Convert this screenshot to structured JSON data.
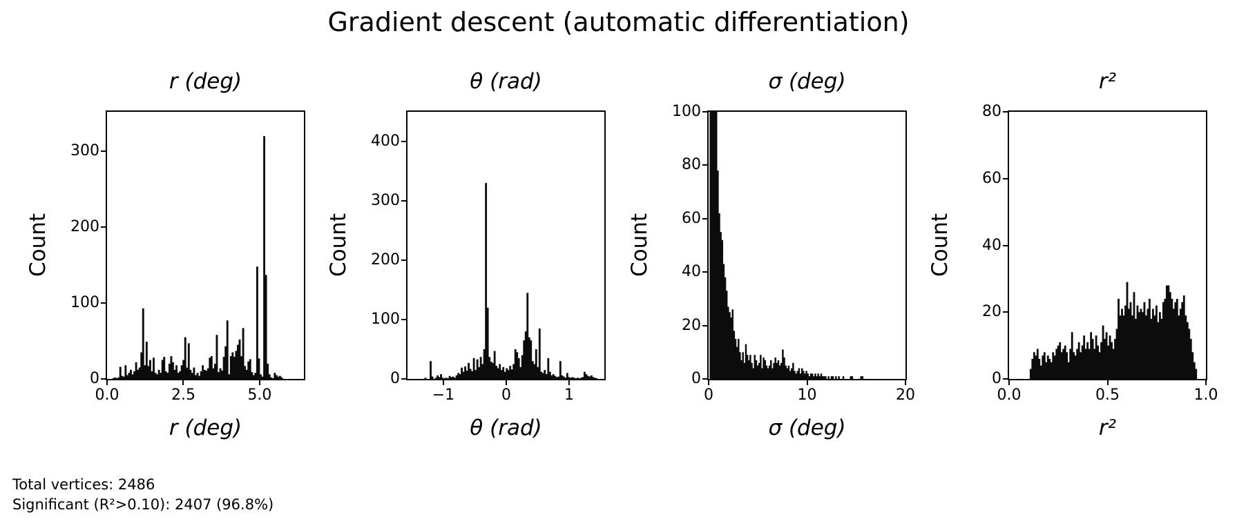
{
  "figure": {
    "title": "Gradient descent (automatic differentiation)"
  },
  "annotation": {
    "line1": "Total vertices: 2486",
    "line2": "Significant (R²>0.10): 2407 (96.8%)"
  },
  "colors": {
    "bar": "#0c0c0c",
    "spine": "#000000",
    "text": "#000000",
    "background": "#ffffff"
  },
  "chart_data": [
    {
      "type": "bar",
      "subtype": "histogram",
      "title": "r (deg)",
      "xlabel": "r (deg)",
      "ylabel": "Count",
      "xlim": [
        0,
        6.45
      ],
      "ylim": [
        0,
        352
      ],
      "grid": false,
      "legend": "none",
      "xticks": [
        {
          "v": 0,
          "label": "0.0"
        },
        {
          "v": 2.5,
          "label": "2.5"
        },
        {
          "v": 5.0,
          "label": "5.0"
        }
      ],
      "yticks": [
        {
          "v": 0,
          "label": "0"
        },
        {
          "v": 100,
          "label": "100"
        },
        {
          "v": 200,
          "label": "200"
        },
        {
          "v": 300,
          "label": "300"
        }
      ],
      "bin_start": 0.0,
      "bin_width": 0.0575,
      "counts": [
        0,
        0,
        0,
        1,
        2,
        1,
        2,
        16,
        4,
        3,
        18,
        5,
        8,
        12,
        6,
        10,
        22,
        12,
        15,
        35,
        93,
        18,
        49,
        17,
        25,
        10,
        28,
        8,
        6,
        12,
        8,
        25,
        29,
        10,
        8,
        20,
        30,
        22,
        12,
        18,
        8,
        10,
        18,
        25,
        55,
        15,
        47,
        12,
        8,
        15,
        5,
        8,
        4,
        10,
        18,
        12,
        11,
        14,
        28,
        30,
        14,
        20,
        58,
        9,
        14,
        11,
        29,
        43,
        77,
        6,
        30,
        35,
        29,
        37,
        45,
        52,
        30,
        67,
        17,
        12,
        23,
        26,
        9,
        5,
        8,
        148,
        27,
        6,
        3,
        320,
        137,
        20,
        6,
        2,
        1,
        8,
        5,
        3,
        4,
        2
      ]
    },
    {
      "type": "bar",
      "subtype": "histogram",
      "title": "θ (rad)",
      "xlabel": "θ (rad)",
      "ylabel": "Count",
      "xlim": [
        -1.57,
        1.56
      ],
      "ylim": [
        0,
        450
      ],
      "grid": false,
      "legend": "none",
      "xticks": [
        {
          "v": -1,
          "label": "−1"
        },
        {
          "v": 0,
          "label": "0"
        },
        {
          "v": 1,
          "label": "1"
        }
      ],
      "yticks": [
        {
          "v": 0,
          "label": "0"
        },
        {
          "v": 100,
          "label": "100"
        },
        {
          "v": 200,
          "label": "200"
        },
        {
          "v": 300,
          "label": "300"
        },
        {
          "v": 400,
          "label": "400"
        }
      ],
      "bin_start": -1.3,
      "bin_width": 0.0275,
      "counts": [
        2,
        0,
        0,
        30,
        4,
        0,
        2,
        6,
        3,
        8,
        2,
        1,
        2,
        1,
        5,
        3,
        4,
        2,
        6,
        10,
        8,
        19,
        12,
        21,
        14,
        27,
        17,
        13,
        35,
        15,
        33,
        20,
        37,
        25,
        50,
        330,
        120,
        37,
        29,
        27,
        47,
        22,
        18,
        25,
        15,
        20,
        12,
        18,
        15,
        22,
        16,
        25,
        50,
        45,
        35,
        20,
        40,
        65,
        80,
        145,
        70,
        65,
        30,
        25,
        50,
        20,
        85,
        12,
        10,
        15,
        8,
        35,
        12,
        6,
        8,
        5,
        3,
        4,
        30,
        6,
        4,
        2,
        10,
        3,
        2,
        3,
        2,
        1,
        2,
        1,
        2,
        3,
        12,
        8,
        5,
        4,
        6,
        3,
        2,
        1
      ]
    },
    {
      "type": "bar",
      "subtype": "histogram",
      "title": "σ (deg)",
      "xlabel": "σ (deg)",
      "ylabel": "Count",
      "xlim": [
        0,
        20
      ],
      "ylim": [
        0,
        100
      ],
      "grid": false,
      "legend": "none",
      "xticks": [
        {
          "v": 0,
          "label": "0"
        },
        {
          "v": 10,
          "label": "10"
        },
        {
          "v": 20,
          "label": "20"
        }
      ],
      "yticks": [
        {
          "v": 0,
          "label": "0"
        },
        {
          "v": 20,
          "label": "20"
        },
        {
          "v": 40,
          "label": "40"
        },
        {
          "v": 60,
          "label": "60"
        },
        {
          "v": 80,
          "label": "80"
        },
        {
          "v": 100,
          "label": "100"
        }
      ],
      "bin_start": 0.1,
      "bin_width": 0.15,
      "counts": [
        100,
        100,
        100,
        100,
        100,
        78,
        62,
        55,
        52,
        43,
        38,
        33,
        27,
        25,
        23,
        26,
        18,
        15,
        12,
        15,
        10,
        7,
        10,
        6,
        13,
        9,
        7,
        9,
        6,
        4,
        9,
        7,
        5,
        6,
        9,
        4,
        8,
        7,
        5,
        4,
        5,
        7,
        4,
        6,
        8,
        6,
        7,
        5,
        6,
        11,
        8,
        5,
        4,
        5,
        3,
        4,
        6,
        3,
        2,
        3,
        4,
        2,
        4,
        3,
        2,
        3,
        2,
        1,
        2,
        2,
        1,
        2,
        1,
        2,
        1,
        2,
        1,
        1,
        1,
        0,
        1,
        0,
        1,
        1,
        0,
        1,
        0,
        1,
        0,
        0,
        1,
        0,
        0,
        0,
        0,
        1,
        1,
        0,
        0,
        0,
        0,
        0,
        1,
        1,
        0
      ]
    },
    {
      "type": "bar",
      "subtype": "histogram",
      "title": "r²",
      "xlabel": "r²",
      "ylabel": "Count",
      "xlim": [
        0,
        1.0
      ],
      "ylim": [
        0,
        80
      ],
      "grid": false,
      "legend": "none",
      "xticks": [
        {
          "v": 0,
          "label": "0.0"
        },
        {
          "v": 0.5,
          "label": "0.5"
        },
        {
          "v": 1.0,
          "label": "1.0"
        }
      ],
      "yticks": [
        {
          "v": 0,
          "label": "0"
        },
        {
          "v": 20,
          "label": "20"
        },
        {
          "v": 40,
          "label": "40"
        },
        {
          "v": 60,
          "label": "60"
        },
        {
          "v": 80,
          "label": "80"
        }
      ],
      "bin_start": 0.105,
      "bin_width": 0.00875,
      "counts": [
        3,
        6,
        8,
        7,
        9,
        6,
        4,
        7,
        8,
        5,
        7,
        6,
        5,
        8,
        7,
        9,
        10,
        11,
        8,
        9,
        10,
        8,
        5,
        9,
        14,
        8,
        7,
        9,
        11,
        8,
        10,
        13,
        9,
        11,
        9,
        14,
        12,
        9,
        13,
        10,
        8,
        11,
        16,
        12,
        14,
        10,
        13,
        11,
        9,
        12,
        15,
        24,
        19,
        21,
        19,
        22,
        29,
        21,
        23,
        19,
        26,
        18,
        22,
        20,
        21,
        20,
        23,
        19,
        21,
        24,
        18,
        21,
        19,
        22,
        17,
        20,
        18,
        23,
        24,
        28,
        28,
        26,
        24,
        21,
        23,
        24,
        19,
        21,
        23,
        25,
        19,
        17,
        15,
        12,
        8,
        5,
        3
      ]
    }
  ]
}
